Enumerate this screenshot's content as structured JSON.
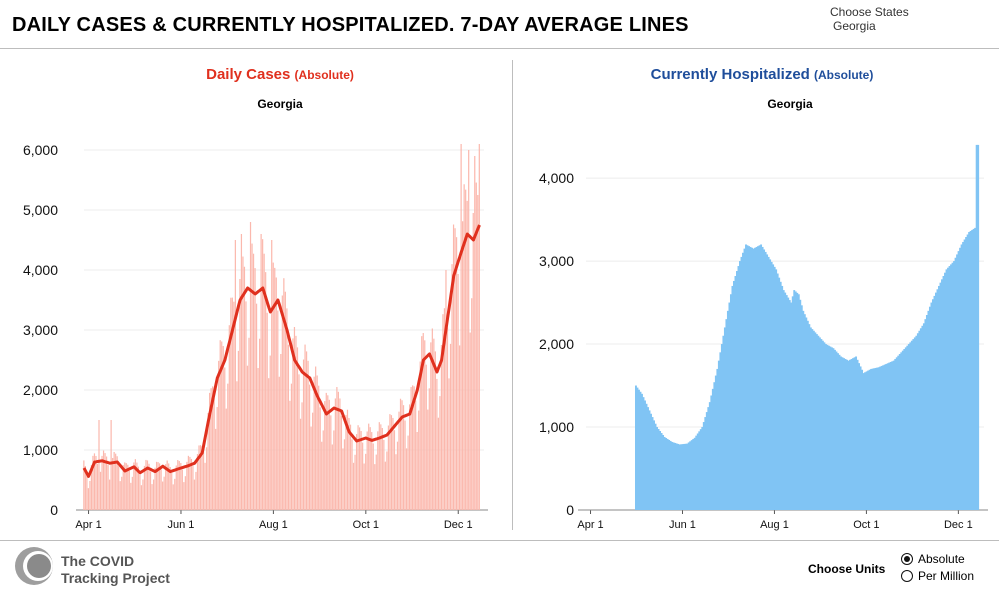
{
  "header": {
    "title": "DAILY CASES & CURRENTLY HOSPITALIZED. 7-DAY AVERAGE LINES",
    "choose_states_label": "Choose States",
    "selected_state": "Georgia"
  },
  "footer": {
    "logo_line1": "The COVID",
    "logo_line2": "Tracking Project",
    "units_label": "Choose Units",
    "units": [
      {
        "label": "Absolute",
        "selected": true
      },
      {
        "label": "Per Million",
        "selected": false
      }
    ]
  },
  "colors": {
    "cases_title": "#e0301e",
    "cases_bar": "#fbb8ad",
    "cases_line": "#e0301e",
    "hosp_title": "#1f4e9b",
    "hosp_bar": "#80c4f4"
  },
  "chart_data": [
    {
      "type": "bar",
      "title": "Daily Cases",
      "title_unit": "(Absolute)",
      "subtitle": "Georgia",
      "xlabel": "",
      "ylabel": "",
      "x_start": "2020-03-29",
      "x_end": "2020-12-18",
      "x_ticks": [
        {
          "date": "2020-04-01",
          "label": "Apr 1"
        },
        {
          "date": "2020-06-01",
          "label": "Jun 1"
        },
        {
          "date": "2020-08-01",
          "label": "Aug 1"
        },
        {
          "date": "2020-10-01",
          "label": "Oct 1"
        },
        {
          "date": "2020-12-01",
          "label": "Dec 1"
        }
      ],
      "y_ticks": [
        0,
        1000,
        2000,
        3000,
        4000,
        5000,
        6000
      ],
      "y_tick_labels": [
        "0",
        "1,000",
        "2,000",
        "3,000",
        "4,000",
        "5,000",
        "6,000"
      ],
      "ylim": [
        0,
        6500
      ],
      "grid": true,
      "bars_start": "2020-03-29",
      "average_anchors": [
        [
          "2020-03-29",
          700
        ],
        [
          "2020-04-01",
          560
        ],
        [
          "2020-04-05",
          800
        ],
        [
          "2020-04-10",
          820
        ],
        [
          "2020-04-15",
          780
        ],
        [
          "2020-04-20",
          800
        ],
        [
          "2020-04-25",
          650
        ],
        [
          "2020-05-01",
          720
        ],
        [
          "2020-05-05",
          620
        ],
        [
          "2020-05-10",
          700
        ],
        [
          "2020-05-15",
          640
        ],
        [
          "2020-05-20",
          730
        ],
        [
          "2020-05-25",
          640
        ],
        [
          "2020-06-01",
          700
        ],
        [
          "2020-06-05",
          730
        ],
        [
          "2020-06-10",
          780
        ],
        [
          "2020-06-15",
          950
        ],
        [
          "2020-06-20",
          1600
        ],
        [
          "2020-06-25",
          2200
        ],
        [
          "2020-06-30",
          2500
        ],
        [
          "2020-07-05",
          3000
        ],
        [
          "2020-07-10",
          3500
        ],
        [
          "2020-07-15",
          3700
        ],
        [
          "2020-07-20",
          3600
        ],
        [
          "2020-07-25",
          3700
        ],
        [
          "2020-07-30",
          3300
        ],
        [
          "2020-08-04",
          3500
        ],
        [
          "2020-08-10",
          3000
        ],
        [
          "2020-08-15",
          2500
        ],
        [
          "2020-08-20",
          2300
        ],
        [
          "2020-08-25",
          2200
        ],
        [
          "2020-08-30",
          1900
        ],
        [
          "2020-09-05",
          1600
        ],
        [
          "2020-09-10",
          1700
        ],
        [
          "2020-09-15",
          1650
        ],
        [
          "2020-09-20",
          1300
        ],
        [
          "2020-09-25",
          1150
        ],
        [
          "2020-10-01",
          1200
        ],
        [
          "2020-10-05",
          1160
        ],
        [
          "2020-10-10",
          1200
        ],
        [
          "2020-10-15",
          1250
        ],
        [
          "2020-10-20",
          1400
        ],
        [
          "2020-10-25",
          1550
        ],
        [
          "2020-10-30",
          1600
        ],
        [
          "2020-11-04",
          2000
        ],
        [
          "2020-11-08",
          2500
        ],
        [
          "2020-11-12",
          2600
        ],
        [
          "2020-11-17",
          2300
        ],
        [
          "2020-11-20",
          2500
        ],
        [
          "2020-11-24",
          3200
        ],
        [
          "2020-11-28",
          3900
        ],
        [
          "2020-12-03",
          4300
        ],
        [
          "2020-12-07",
          4600
        ],
        [
          "2020-12-11",
          4500
        ],
        [
          "2020-12-15",
          4750
        ]
      ],
      "peak_days": [
        [
          "2020-04-08",
          1500
        ],
        [
          "2020-04-16",
          1500
        ],
        [
          "2020-07-07",
          4500
        ],
        [
          "2020-07-11",
          4600
        ],
        [
          "2020-07-17",
          4800
        ],
        [
          "2020-07-24",
          4600
        ],
        [
          "2020-07-31",
          4500
        ],
        [
          "2020-11-23",
          4000
        ],
        [
          "2020-12-03",
          6100
        ],
        [
          "2020-12-08",
          6000
        ],
        [
          "2020-12-12",
          5900
        ],
        [
          "2020-12-15",
          6100
        ]
      ],
      "series": [
        {
          "name": "Daily Cases",
          "kind": "bar"
        },
        {
          "name": "7-Day Average",
          "kind": "line"
        }
      ]
    },
    {
      "type": "bar",
      "title": "Currently Hospitalized",
      "title_unit": "(Absolute)",
      "subtitle": "Georgia",
      "xlabel": "",
      "ylabel": "",
      "x_start": "2020-03-29",
      "x_end": "2020-12-18",
      "x_ticks": [
        {
          "date": "2020-04-01",
          "label": "Apr 1"
        },
        {
          "date": "2020-06-01",
          "label": "Jun 1"
        },
        {
          "date": "2020-08-01",
          "label": "Aug 1"
        },
        {
          "date": "2020-10-01",
          "label": "Oct 1"
        },
        {
          "date": "2020-12-01",
          "label": "Dec 1"
        }
      ],
      "y_ticks": [
        0,
        1000,
        2000,
        3000,
        4000
      ],
      "y_tick_labels": [
        "0",
        "1,000",
        "2,000",
        "3,000",
        "4,000"
      ],
      "ylim": [
        0,
        4700
      ],
      "grid": true,
      "bars_start": "2020-05-01",
      "anchors": [
        [
          "2020-05-01",
          1500
        ],
        [
          "2020-05-05",
          1400
        ],
        [
          "2020-05-10",
          1200
        ],
        [
          "2020-05-15",
          1000
        ],
        [
          "2020-05-20",
          880
        ],
        [
          "2020-05-25",
          820
        ],
        [
          "2020-05-30",
          790
        ],
        [
          "2020-06-04",
          800
        ],
        [
          "2020-06-09",
          870
        ],
        [
          "2020-06-14",
          1000
        ],
        [
          "2020-06-19",
          1300
        ],
        [
          "2020-06-24",
          1700
        ],
        [
          "2020-06-29",
          2200
        ],
        [
          "2020-07-04",
          2700
        ],
        [
          "2020-07-09",
          3000
        ],
        [
          "2020-07-13",
          3200
        ],
        [
          "2020-07-18",
          3150
        ],
        [
          "2020-07-23",
          3200
        ],
        [
          "2020-07-28",
          3050
        ],
        [
          "2020-08-02",
          2900
        ],
        [
          "2020-08-07",
          2650
        ],
        [
          "2020-08-12",
          2500
        ],
        [
          "2020-08-14",
          2650
        ],
        [
          "2020-08-17",
          2600
        ],
        [
          "2020-08-20",
          2400
        ],
        [
          "2020-08-25",
          2200
        ],
        [
          "2020-08-30",
          2100
        ],
        [
          "2020-09-04",
          2000
        ],
        [
          "2020-09-09",
          1950
        ],
        [
          "2020-09-14",
          1850
        ],
        [
          "2020-09-19",
          1800
        ],
        [
          "2020-09-24",
          1850
        ],
        [
          "2020-09-29",
          1650
        ],
        [
          "2020-10-04",
          1700
        ],
        [
          "2020-10-09",
          1720
        ],
        [
          "2020-10-14",
          1760
        ],
        [
          "2020-10-19",
          1800
        ],
        [
          "2020-10-24",
          1900
        ],
        [
          "2020-10-29",
          2000
        ],
        [
          "2020-11-03",
          2100
        ],
        [
          "2020-11-08",
          2250
        ],
        [
          "2020-11-13",
          2500
        ],
        [
          "2020-11-18",
          2700
        ],
        [
          "2020-11-23",
          2900
        ],
        [
          "2020-11-28",
          3000
        ],
        [
          "2020-12-03",
          3200
        ],
        [
          "2020-12-08",
          3350
        ],
        [
          "2020-12-12",
          3400
        ],
        [
          "2020-12-13",
          4400
        ],
        [
          "2020-12-14",
          4400
        ]
      ],
      "series": [
        {
          "name": "Currently Hospitalized",
          "kind": "bar"
        }
      ]
    }
  ]
}
